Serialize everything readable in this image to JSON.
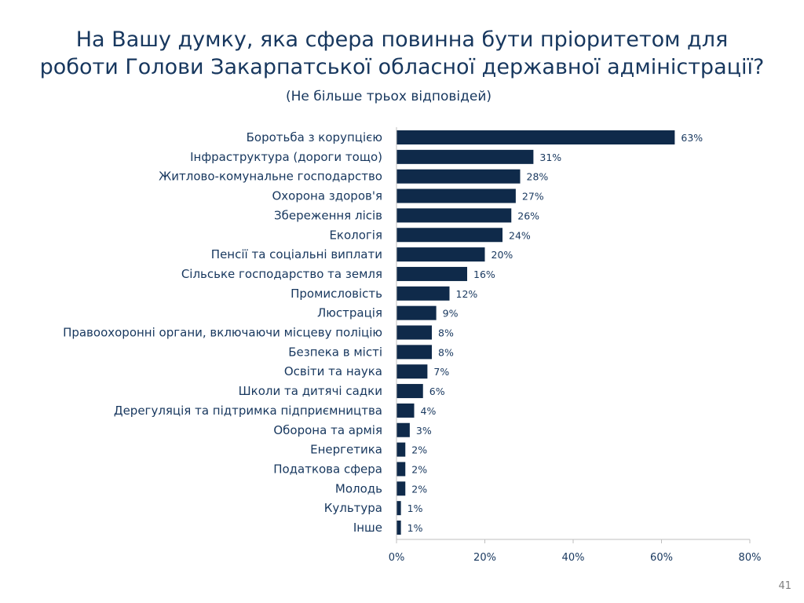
{
  "slide": {
    "title_line1": "На Вашу думку, яка сфера повинна бути пріоритетом для",
    "title_line2": "роботи Голови Закарпатської обласної державної адміністрації?",
    "subtitle": "(Не більше трьох відповідей)",
    "page_number": "41"
  },
  "colors": {
    "bar": "#0f2a4a",
    "title": "#17375e",
    "axis": "#bfbfbf"
  },
  "chart_data": {
    "type": "bar",
    "orientation": "horizontal",
    "title": "На Вашу думку, яка сфера повинна бути пріоритетом для роботи Голови Закарпатської обласної державної адміністрації?",
    "subtitle": "(Не більше трьох відповідей)",
    "categories": [
      "Боротьба з корупцією",
      "Інфраструктура (дороги тощо)",
      "Житлово-комунальне господарство",
      "Охорона здоров'я",
      "Збереження лісів",
      "Екологія",
      "Пенсії та соціальні виплати",
      "Сільське господарство та земля",
      "Промисловість",
      "Люстрація",
      "Правоохоронні органи, включаючи місцеву поліцію",
      "Безпека в місті",
      "Освіти та наука",
      "Школи та дитячі садки",
      "Дерегуляція та підтримка підприємництва",
      "Оборона та армія",
      "Енергетика",
      "Податкова сфера",
      "Молодь",
      "Культура",
      "Інше"
    ],
    "values": [
      63,
      31,
      28,
      27,
      26,
      24,
      20,
      16,
      12,
      9,
      8,
      8,
      7,
      6,
      4,
      3,
      2,
      2,
      2,
      1,
      1
    ],
    "value_labels": [
      "63%",
      "31%",
      "28%",
      "27%",
      "26%",
      "24%",
      "20%",
      "16%",
      "12%",
      "9%",
      "8%",
      "8%",
      "7%",
      "6%",
      "4%",
      "3%",
      "2%",
      "2%",
      "2%",
      "1%",
      "1%"
    ],
    "x_ticks": [
      0,
      20,
      40,
      60,
      80
    ],
    "x_tick_labels": [
      "0%",
      "20%",
      "40%",
      "60%",
      "80%"
    ],
    "xlim": [
      0,
      80
    ],
    "xlabel": "",
    "ylabel": "",
    "grid": false,
    "legend": "none"
  }
}
